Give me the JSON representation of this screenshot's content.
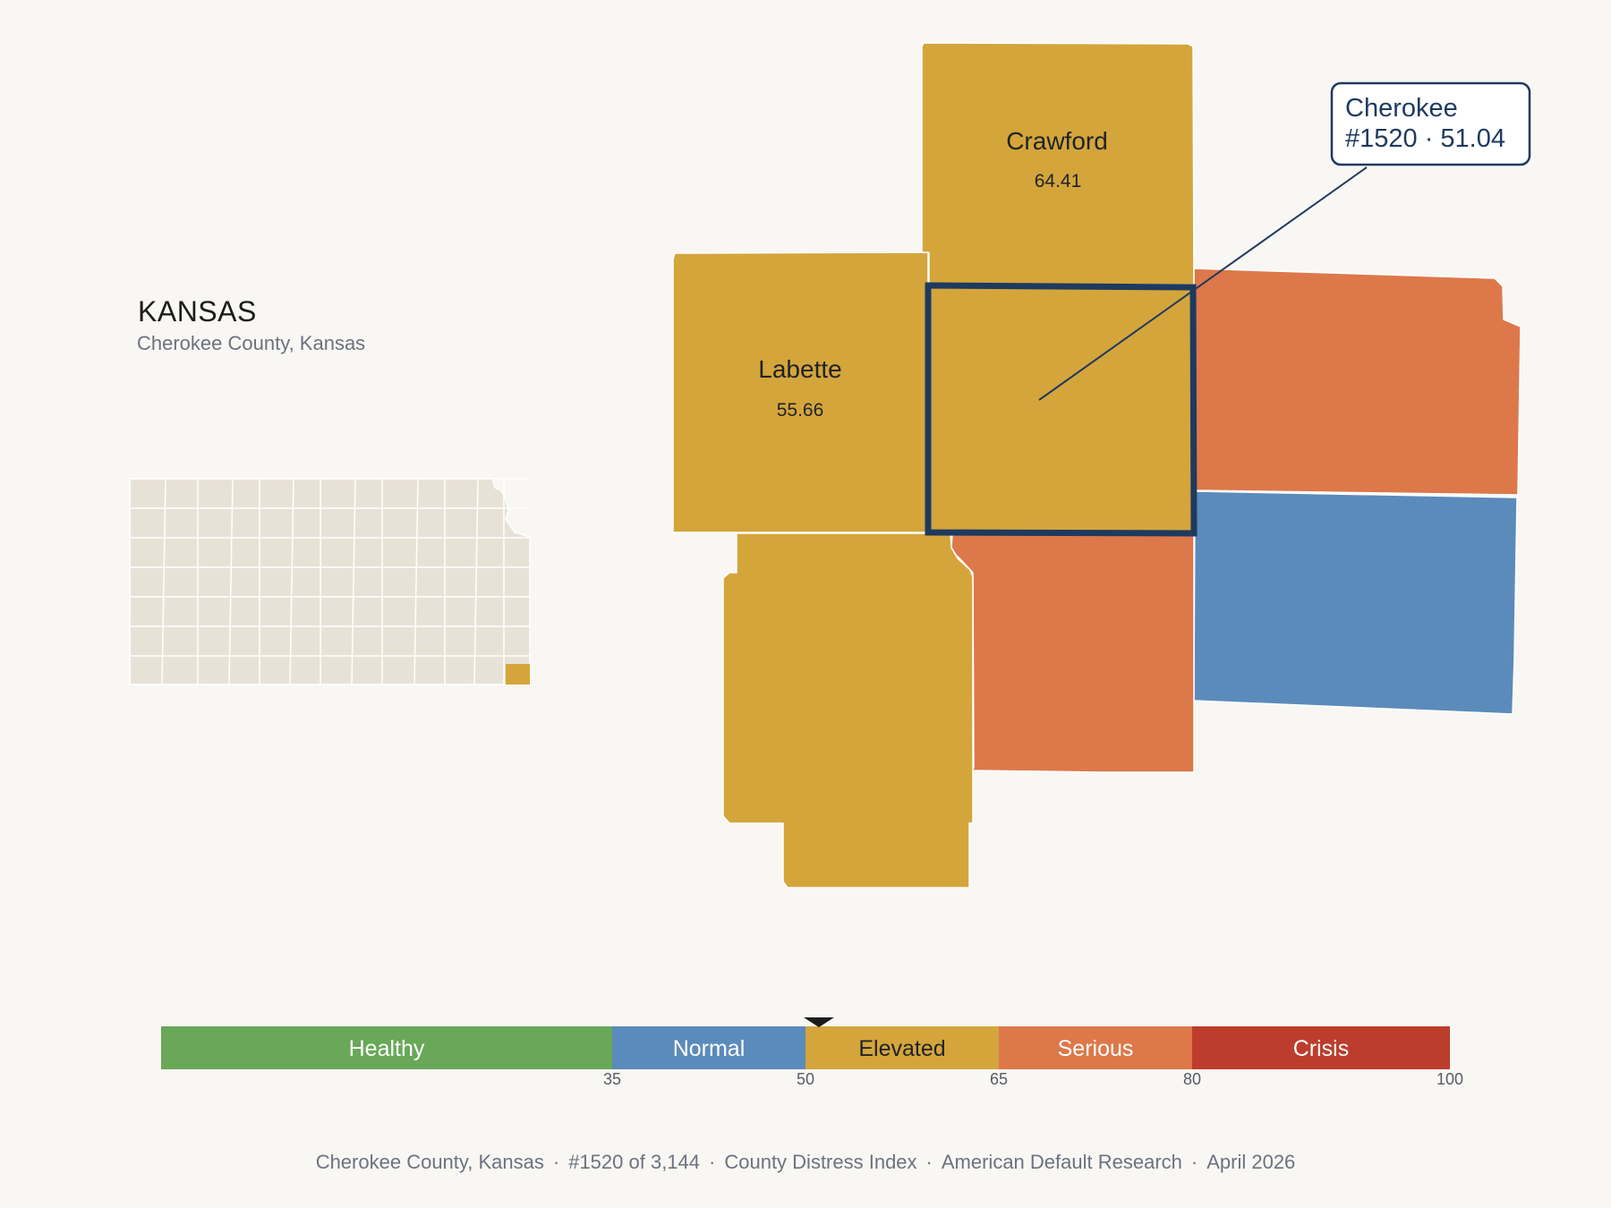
{
  "state": {
    "title": "KANSAS",
    "subtitle": "Cherokee County, Kansas"
  },
  "counties": {
    "crawford": {
      "name": "Crawford",
      "value": "64.41",
      "category": "Elevated"
    },
    "labette": {
      "name": "Labette",
      "value": "55.66",
      "category": "Elevated"
    },
    "cherokee": {
      "name": "Cherokee",
      "value": "51.04",
      "category": "Elevated",
      "rank": "#1520"
    },
    "montgomery_area": {
      "category": "Elevated"
    },
    "ottawa_area": {
      "category": "Serious"
    },
    "jasper_area": {
      "category": "Serious"
    },
    "newton_area": {
      "category": "Normal"
    }
  },
  "callout": {
    "line1": "Cherokee",
    "line2": "#1520 · 51.04"
  },
  "legend": {
    "bands": [
      {
        "label": "Healthy",
        "from": 0,
        "to": 35,
        "color": "#68a858",
        "text_color": "#ffffff"
      },
      {
        "label": "Normal",
        "from": 35,
        "to": 50,
        "color": "#5b8bbb",
        "text_color": "#ffffff"
      },
      {
        "label": "Elevated",
        "from": 50,
        "to": 65,
        "color": "#d4a53b",
        "text_color": "#1f2328"
      },
      {
        "label": "Serious",
        "from": 65,
        "to": 80,
        "color": "#dd784a",
        "text_color": "#ffffff"
      },
      {
        "label": "Crisis",
        "from": 80,
        "to": 100,
        "color": "#bc3d2c",
        "text_color": "#ffffff"
      }
    ],
    "ticks": [
      "35",
      "50",
      "65",
      "80",
      "100"
    ],
    "marker_value": 51.04
  },
  "colors": {
    "elevated": "#d4a53b",
    "serious": "#dd784a",
    "normal": "#5b8bbb",
    "highlight_outline": "#1e3a5f",
    "inset_fill": "#e8e2d6",
    "inset_highlight": "#d4a53b"
  },
  "footer": {
    "county": "Cherokee County, Kansas",
    "rank": "#1520 of 3,144",
    "index": "County Distress Index",
    "source": "American Default Research",
    "date": "April 2026"
  }
}
